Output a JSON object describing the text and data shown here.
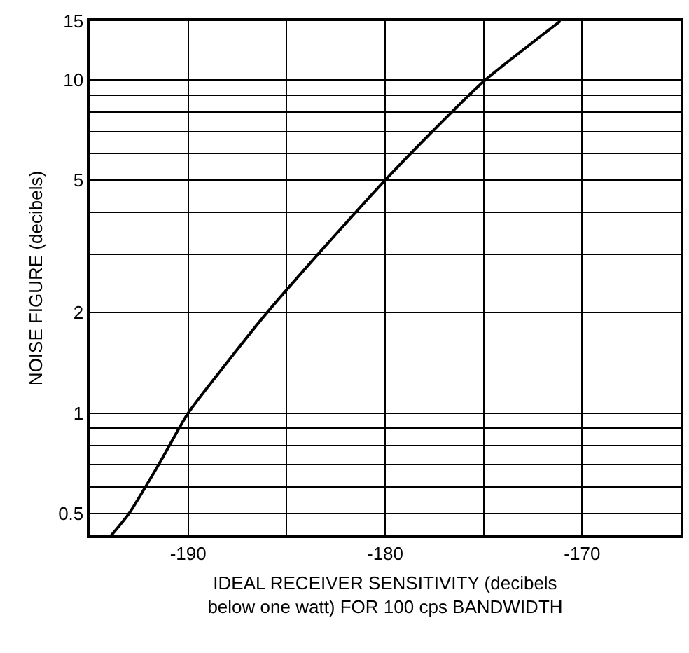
{
  "chart_data": {
    "type": "line",
    "xlabel": "IDEAL RECEIVER SENSITIVITY (decibels\nbelow one watt) FOR 100 cps BANDWIDTH",
    "ylabel": "NOISE FIGURE (decibels)",
    "x": [
      -193.9,
      -193.0,
      -191.5,
      -190.0,
      -188.1,
      -186.0,
      -183.4,
      -181.5,
      -180.0,
      -177.6,
      -174.9,
      -171.1
    ],
    "series": [
      {
        "color": "#000000",
        "values": [
          0.43,
          0.5,
          0.7,
          1.0,
          1.4,
          2.0,
          3.0,
          4.0,
          5.0,
          7.0,
          10.0,
          15.0
        ]
      }
    ],
    "xlim": [
      -195,
      -165
    ],
    "xticks": [
      -190,
      {
        "value": -185,
        "label": null
      },
      -180,
      {
        "value": -175,
        "label": null
      },
      -170
    ],
    "ylim": [
      0.43,
      15
    ],
    "yticks": [
      0.5,
      {
        "value": 0.6,
        "label": null
      },
      {
        "value": 0.7,
        "label": null
      },
      {
        "value": 0.8,
        "label": null
      },
      {
        "value": 0.9,
        "label": null
      },
      1,
      2,
      {
        "value": 3,
        "label": null
      },
      {
        "value": 4,
        "label": null
      },
      5,
      {
        "value": 6,
        "label": null
      },
      {
        "value": 7,
        "label": null
      },
      {
        "value": 8,
        "label": null
      },
      {
        "value": 9,
        "label": null
      },
      10,
      15
    ],
    "log": "y",
    "grid": true,
    "marker": "none",
    "line_style": "solid"
  }
}
